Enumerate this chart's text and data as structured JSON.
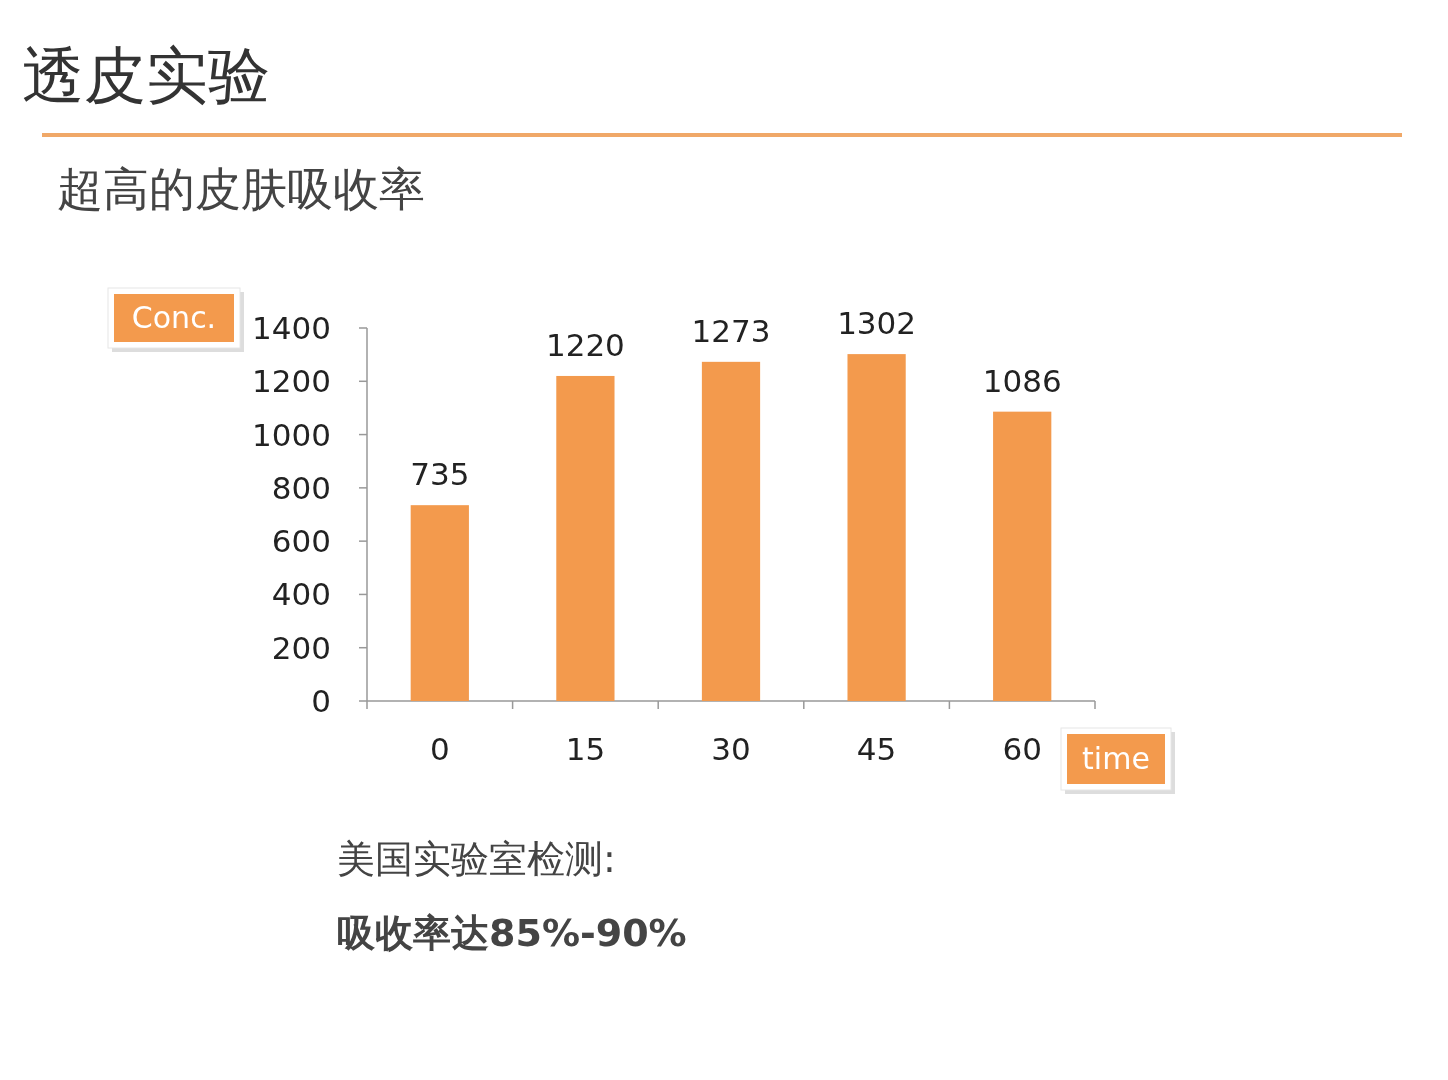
{
  "chart_data": {
    "type": "bar",
    "title": "透皮实验",
    "subtitle": "超高的皮肤吸收率",
    "xlabel": "time",
    "ylabel": "Conc.",
    "categories": [
      "0",
      "15",
      "30",
      "45",
      "60"
    ],
    "values": [
      735,
      1220,
      1273,
      1302,
      1086
    ],
    "color": "#f39a4d",
    "ylim": [
      0,
      1400
    ],
    "yticks": [
      0,
      200,
      400,
      600,
      800,
      1000,
      1200,
      1400
    ],
    "data_labels": true,
    "annotations": [
      "美国实验室检测:",
      "吸收率达85%-90%"
    ]
  }
}
